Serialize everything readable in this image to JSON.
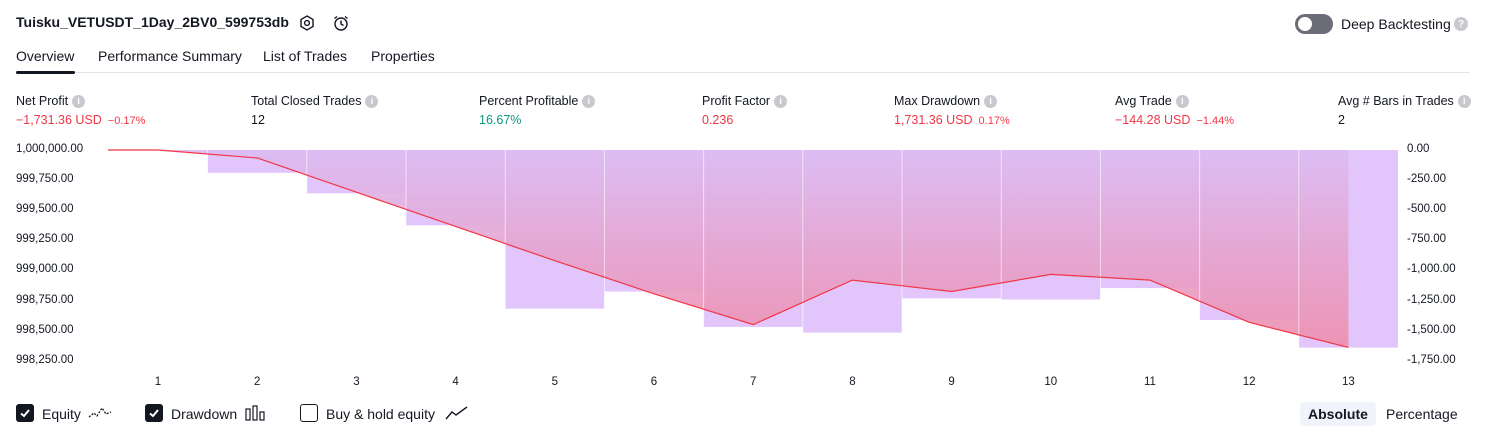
{
  "header": {
    "title": "Tuisku_VETUSDT_1Day_2BV0_599753db",
    "deep_backtesting_label": "Deep Backtesting",
    "deep_backtesting_enabled": false,
    "help_glyph": "?"
  },
  "tabs": [
    {
      "label": "Overview",
      "active": true
    },
    {
      "label": "Performance Summary",
      "active": false
    },
    {
      "label": "List of Trades",
      "active": false
    },
    {
      "label": "Properties",
      "active": false
    }
  ],
  "stats": {
    "info_glyph": "i",
    "net_profit": {
      "label": "Net Profit",
      "value": "−1,731.36 USD",
      "pct": "−0.17%"
    },
    "total_closed_trades": {
      "label": "Total Closed Trades",
      "value": "12"
    },
    "percent_profitable": {
      "label": "Percent Profitable",
      "value": "16.67%"
    },
    "profit_factor": {
      "label": "Profit Factor",
      "value": "0.236"
    },
    "max_drawdown": {
      "label": "Max Drawdown",
      "value": "1,731.36 USD",
      "pct": "0.17%"
    },
    "avg_trade": {
      "label": "Avg Trade",
      "value": "−144.28 USD",
      "pct": "−1.44%"
    },
    "avg_bars": {
      "label": "Avg # Bars in Trades",
      "value": "2"
    }
  },
  "colors": {
    "negative": "#f23645",
    "positive": "#089981",
    "drawdown_bar": "#e1c5fb",
    "equity_line": "#f23645",
    "equity_fill_top": "#dcbcf3",
    "equity_fill_bottom": "#ee8fae"
  },
  "chart_data": {
    "type": "area",
    "x": [
      "1",
      "2",
      "3",
      "4",
      "5",
      "6",
      "7",
      "8",
      "9",
      "10",
      "11",
      "12",
      "13"
    ],
    "left_axis_ticks": [
      "1,000,000.00",
      "999,750.00",
      "999,500.00",
      "999,250.00",
      "999,000.00",
      "998,750.00",
      "998,500.00",
      "998,250.00"
    ],
    "right_axis_ticks": [
      "0.00",
      "-250.00",
      "-500.00",
      "-750.00",
      "-1,000.00",
      "-1,250.00",
      "-1,500.00",
      "-1,750.00"
    ],
    "equity_ylim": [
      998160,
      1000000
    ],
    "drawdown_ylim": [
      -1840,
      0
    ],
    "series": [
      {
        "name": "Equity",
        "values": [
          1000000,
          999930,
          999630,
          999330,
          999030,
          998740,
          998470,
          998860,
          998760,
          998910,
          998860,
          998490,
          998270
        ]
      },
      {
        "name": "Drawdown",
        "values": [
          0,
          -200,
          -380,
          -660,
          -1390,
          -1240,
          -1550,
          -1600,
          -1300,
          -1310,
          -1210,
          -1490,
          -1731.36
        ]
      }
    ],
    "grid": false
  },
  "legend": {
    "items": [
      {
        "label": "Equity",
        "checked": true,
        "icon": "equity-line-icon"
      },
      {
        "label": "Drawdown",
        "checked": true,
        "icon": "drawdown-bars-icon"
      },
      {
        "label": "Buy & hold equity",
        "checked": false,
        "icon": "buy-hold-line-icon"
      }
    ]
  },
  "display_mode": {
    "options": [
      "Absolute",
      "Percentage"
    ],
    "selected": "Absolute"
  }
}
